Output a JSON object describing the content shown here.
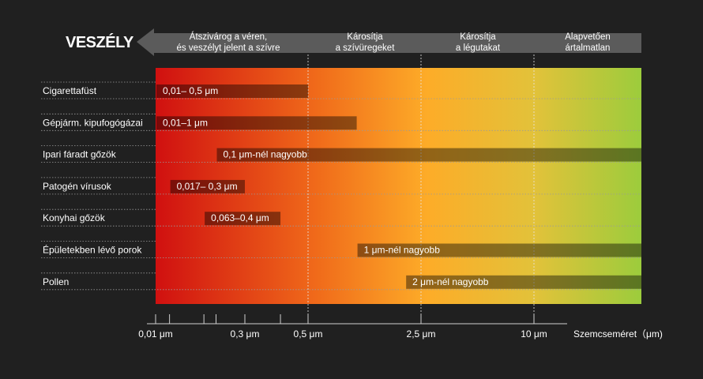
{
  "chart_data": {
    "type": "bar",
    "orientation": "horizontal-range",
    "danger_label": "VESZÉLY",
    "zones": [
      {
        "lines": [
          "Átszivárog a véren,",
          "és veszélyt jelent a szívre"
        ]
      },
      {
        "lines": [
          "Károsítja",
          "a szívüregeket"
        ]
      },
      {
        "lines": [
          "Károsítja",
          "a légutakat"
        ]
      },
      {
        "lines": [
          "Alapvetően",
          "ártalmatlan"
        ]
      }
    ],
    "zone_boundaries_um": [
      0.5,
      2.5,
      10
    ],
    "x_axis": {
      "label": "Szemcseméret（μm)",
      "ticks": [
        {
          "value": 0.01,
          "label": "0,01 μm"
        },
        {
          "value": 0.3,
          "label": "0,3 μm"
        },
        {
          "value": 0.5,
          "label": "0,5 μm"
        },
        {
          "value": 2.5,
          "label": "2,5 μm"
        },
        {
          "value": 10,
          "label": "10 μm"
        }
      ],
      "minor_ticks": [
        0.017,
        0.063,
        0.1,
        0.4
      ]
    },
    "gradient_colors": [
      "#d01010",
      "#f06a1a",
      "#fdac28",
      "#e2c23a",
      "#9ccc3c"
    ],
    "rows": [
      {
        "name": "Cigarettafüst",
        "min": 0.01,
        "max": 0.5,
        "bar_label": "0,01– 0,5 μm"
      },
      {
        "name": "Gépjárm. kipufogógázai",
        "min": 0.01,
        "max": 1,
        "bar_label": "0,01–1 μm"
      },
      {
        "name": "Ipari fáradt gőzök",
        "min": 0.1,
        "max": null,
        "bar_label": "0,1 μm-nél nagyobb"
      },
      {
        "name": "Patogén vírusok",
        "min": 0.017,
        "max": 0.3,
        "bar_label": "0,017– 0,3 μm"
      },
      {
        "name": "Konyhai gőzök",
        "min": 0.063,
        "max": 0.4,
        "bar_label": "0,063–0,4 μm"
      },
      {
        "name": "Épületekben lévő porok",
        "min": 1,
        "max": null,
        "bar_label": "1 μm-nél nagyobb"
      },
      {
        "name": "Pollen",
        "min": 2,
        "max": null,
        "bar_label": "2 μm-nél nagyobb"
      }
    ]
  }
}
